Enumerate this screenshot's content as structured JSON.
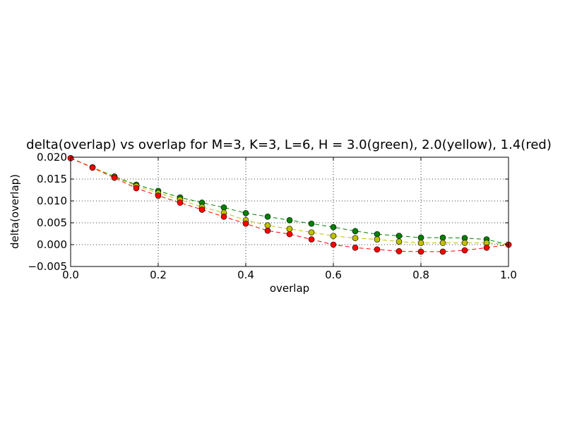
{
  "chart_data": {
    "type": "line",
    "title": "delta(overlap) vs overlap for M=3, K=3, L=6, H = 3.0(green), 2.0(yellow), 1.4(red)",
    "xlabel": "overlap",
    "ylabel": "delta(overlap)",
    "xlim": [
      0.0,
      1.0
    ],
    "ylim": [
      -0.005,
      0.02
    ],
    "grid": true,
    "legend": "none",
    "xticks": [
      "0.0",
      "0.2",
      "0.4",
      "0.6",
      "0.8",
      "1.0"
    ],
    "yticks": [
      "−0.005",
      "0.000",
      "0.005",
      "0.010",
      "0.015",
      "0.020"
    ],
    "x": [
      0.0,
      0.05,
      0.1,
      0.15,
      0.2,
      0.25,
      0.3,
      0.35,
      0.4,
      0.45,
      0.5,
      0.55,
      0.6,
      0.65,
      0.7,
      0.75,
      0.8,
      0.85,
      0.9,
      0.95,
      1.0
    ],
    "series": [
      {
        "color": "#008000",
        "values": [
          0.0198,
          0.0177,
          0.0156,
          0.0137,
          0.0123,
          0.0108,
          0.0096,
          0.0085,
          0.0072,
          0.0064,
          0.0056,
          0.0048,
          0.004,
          0.0031,
          0.0024,
          0.002,
          0.0016,
          0.0016,
          0.0015,
          0.0012,
          0.0
        ]
      },
      {
        "color": "#bfbf00",
        "values": [
          0.0198,
          0.0177,
          0.0155,
          0.0134,
          0.0118,
          0.0103,
          0.0086,
          0.0073,
          0.0056,
          0.0044,
          0.0036,
          0.0028,
          0.002,
          0.0015,
          0.0012,
          0.0007,
          0.0004,
          0.0004,
          0.0004,
          0.0004,
          0.0
        ]
      },
      {
        "color": "#ff0000",
        "values": [
          0.0198,
          0.0176,
          0.0153,
          0.0129,
          0.0112,
          0.0096,
          0.008,
          0.0064,
          0.0048,
          0.0032,
          0.0024,
          0.0012,
          0.0,
          -0.0007,
          -0.0011,
          -0.0015,
          -0.0016,
          -0.0016,
          -0.0013,
          -0.0007,
          0.0
        ]
      }
    ]
  }
}
